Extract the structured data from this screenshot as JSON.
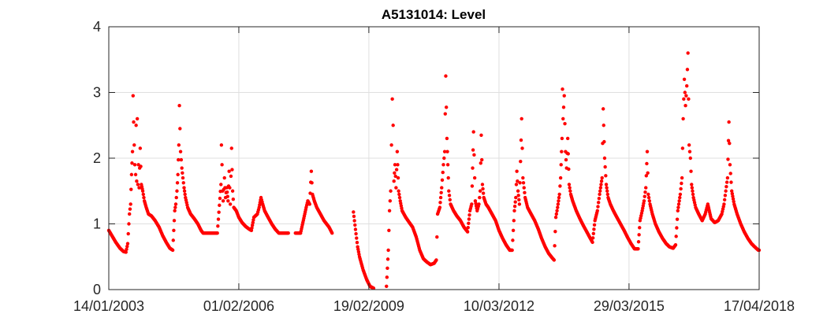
{
  "chart_data": {
    "type": "scatter",
    "title": "A5131014: Level",
    "xlabel": "",
    "ylabel": "",
    "x_axis": {
      "type": "date",
      "range": [
        "2003-01-14",
        "2018-04-17"
      ],
      "tick_labels": [
        "14/01/2003",
        "01/02/2006",
        "19/02/2009",
        "10/03/2012",
        "29/03/2015",
        "17/04/2018"
      ]
    },
    "y_axis": {
      "range": [
        0,
        4
      ],
      "tick_labels": [
        "0",
        "1",
        "2",
        "3",
        "4"
      ]
    },
    "grid": true,
    "legend": "none",
    "marker_color": "#ff0000",
    "series": [
      {
        "points": [
          [
            "2003-01-14",
            0.9
          ],
          [
            "2003-02-10",
            0.82
          ],
          [
            "2003-03-15",
            0.72
          ],
          [
            "2003-04-20",
            0.63
          ],
          [
            "2003-05-20",
            0.58
          ],
          [
            "2003-06-10",
            0.57
          ],
          [
            "2003-06-25",
            0.7
          ],
          [
            "2003-07-10",
            1.15
          ],
          [
            "2003-07-20",
            1.3
          ],
          [
            "2003-07-28",
            1.75
          ],
          [
            "2003-08-05",
            2.1
          ],
          [
            "2003-08-10",
            2.95
          ],
          [
            "2003-08-15",
            2.55
          ],
          [
            "2003-08-20",
            2.2
          ],
          [
            "2003-08-25",
            1.9
          ],
          [
            "2003-09-01",
            1.75
          ],
          [
            "2003-09-05",
            2.5
          ],
          [
            "2003-09-10",
            1.65
          ],
          [
            "2003-09-15",
            2.6
          ],
          [
            "2003-09-20",
            1.6
          ],
          [
            "2003-09-25",
            1.9
          ],
          [
            "2003-10-01",
            1.55
          ],
          [
            "2003-10-10",
            2.15
          ],
          [
            "2003-10-20",
            1.6
          ],
          [
            "2003-11-01",
            1.5
          ],
          [
            "2003-11-15",
            1.35
          ],
          [
            "2003-12-01",
            1.25
          ],
          [
            "2003-12-20",
            1.15
          ],
          [
            "2004-01-15",
            1.12
          ],
          [
            "2004-02-15",
            1.05
          ],
          [
            "2004-03-20",
            0.95
          ],
          [
            "2004-04-20",
            0.82
          ],
          [
            "2004-05-20",
            0.72
          ],
          [
            "2004-06-20",
            0.63
          ],
          [
            "2004-07-15",
            0.6
          ],
          [
            "2004-08-01",
            1.2
          ],
          [
            "2004-08-10",
            1.3
          ],
          [
            "2004-08-20",
            1.5
          ],
          [
            "2004-08-28",
            1.75
          ],
          [
            "2004-09-05",
            2.2
          ],
          [
            "2004-09-10",
            2.8
          ],
          [
            "2004-09-15",
            2.45
          ],
          [
            "2004-09-20",
            2.1
          ],
          [
            "2004-10-01",
            1.85
          ],
          [
            "2004-10-10",
            1.7
          ],
          [
            "2004-10-20",
            1.55
          ],
          [
            "2004-11-01",
            1.4
          ],
          [
            "2004-11-20",
            1.25
          ],
          [
            "2004-12-15",
            1.15
          ],
          [
            "2005-01-15",
            1.08
          ],
          [
            "2005-02-15",
            1.0
          ],
          [
            "2005-03-15",
            0.9
          ],
          [
            "2005-04-01",
            0.86
          ],
          [
            "2005-05-01",
            0.86
          ],
          [
            "2005-06-01",
            0.86
          ],
          [
            "2005-07-01",
            0.86
          ],
          [
            "2005-08-01",
            0.86
          ],
          [
            "2005-09-01",
            1.6
          ],
          [
            "2005-09-05",
            2.2
          ],
          [
            "2005-09-10",
            1.9
          ],
          [
            "2005-09-15",
            1.5
          ],
          [
            "2005-09-20",
            1.35
          ],
          [
            "2005-10-01",
            1.7
          ],
          [
            "2005-10-10",
            1.4
          ],
          [
            "2005-10-20",
            1.55
          ],
          [
            "2005-11-01",
            1.35
          ],
          [
            "2005-11-10",
            1.8
          ],
          [
            "2005-11-20",
            1.3
          ],
          [
            "2005-12-01",
            2.15
          ],
          [
            "2005-12-10",
            1.5
          ],
          [
            "2005-12-20",
            1.25
          ],
          [
            "2006-01-10",
            1.2
          ],
          [
            "2006-02-01",
            1.1
          ],
          [
            "2006-03-01",
            1.02
          ],
          [
            "2006-04-01",
            0.96
          ],
          [
            "2006-05-01",
            0.92
          ],
          [
            "2006-05-20",
            0.9
          ],
          [
            "2006-06-10",
            1.1
          ],
          [
            "2006-07-10",
            1.15
          ],
          [
            "2006-07-25",
            1.25
          ],
          [
            "2006-08-10",
            1.4
          ],
          [
            "2006-08-25",
            1.3
          ],
          [
            "2006-09-10",
            1.2
          ],
          [
            "2006-10-10",
            1.1
          ],
          [
            "2006-11-10",
            1.0
          ],
          [
            "2006-12-10",
            0.92
          ],
          [
            "2007-01-10",
            0.86
          ],
          [
            "2007-02-15",
            0.86
          ],
          [
            "2007-04-01",
            0.86
          ],
          [
            "2007-06-01",
            0.86
          ],
          [
            "2007-07-15",
            0.86
          ],
          [
            "2007-08-20",
            1.15
          ],
          [
            "2007-09-01",
            1.25
          ],
          [
            "2007-09-15",
            1.35
          ],
          [
            "2007-10-01",
            1.3
          ],
          [
            "2007-10-15",
            1.8
          ],
          [
            "2007-10-25",
            1.45
          ],
          [
            "2007-11-10",
            1.35
          ],
          [
            "2007-12-01",
            1.25
          ],
          [
            "2008-01-01",
            1.15
          ],
          [
            "2008-02-01",
            1.05
          ],
          [
            "2008-03-15",
            0.95
          ],
          [
            "2008-04-10",
            0.86
          ],
          [
            "2008-10-10",
            1.18
          ],
          [
            "2008-11-01",
            0.85
          ],
          [
            "2008-11-15",
            0.65
          ],
          [
            "2008-12-01",
            0.5
          ],
          [
            "2009-01-01",
            0.3
          ],
          [
            "2009-02-01",
            0.15
          ],
          [
            "2009-03-01",
            0.05
          ],
          [
            "2009-04-01",
            0.02
          ],
          [
            "2009-07-20",
            0.05
          ],
          [
            "2009-08-05",
            0.6
          ],
          [
            "2009-08-15",
            1.2
          ],
          [
            "2009-08-25",
            1.5
          ],
          [
            "2009-09-01",
            2.2
          ],
          [
            "2009-09-08",
            2.9
          ],
          [
            "2009-09-15",
            2.5
          ],
          [
            "2009-09-22",
            1.65
          ],
          [
            "2009-10-01",
            1.9
          ],
          [
            "2009-10-10",
            1.55
          ],
          [
            "2009-10-20",
            2.1
          ],
          [
            "2009-11-01",
            1.5
          ],
          [
            "2009-11-15",
            1.35
          ],
          [
            "2009-12-01",
            1.2
          ],
          [
            "2010-01-01",
            1.1
          ],
          [
            "2010-02-01",
            1.02
          ],
          [
            "2010-03-01",
            0.95
          ],
          [
            "2010-04-01",
            0.8
          ],
          [
            "2010-05-01",
            0.6
          ],
          [
            "2010-06-01",
            0.47
          ],
          [
            "2010-07-01",
            0.42
          ],
          [
            "2010-08-01",
            0.38
          ],
          [
            "2010-09-01",
            0.4
          ],
          [
            "2010-09-20",
            0.45
          ],
          [
            "2010-10-01",
            1.15
          ],
          [
            "2010-10-20",
            1.25
          ],
          [
            "2010-11-05",
            1.55
          ],
          [
            "2010-11-20",
            1.9
          ],
          [
            "2010-12-01",
            2.1
          ],
          [
            "2010-12-10",
            3.25
          ],
          [
            "2010-12-20",
            2.3
          ],
          [
            "2011-01-05",
            1.5
          ],
          [
            "2011-01-20",
            1.3
          ],
          [
            "2011-02-15",
            1.2
          ],
          [
            "2011-03-15",
            1.12
          ],
          [
            "2011-04-15",
            1.05
          ],
          [
            "2011-05-15",
            0.95
          ],
          [
            "2011-06-15",
            0.88
          ],
          [
            "2011-07-05",
            1.2
          ],
          [
            "2011-07-20",
            1.3
          ],
          [
            "2011-08-05",
            2.4
          ],
          [
            "2011-08-20",
            1.35
          ],
          [
            "2011-09-05",
            1.2
          ],
          [
            "2011-09-20",
            1.3
          ],
          [
            "2011-10-01",
            1.5
          ],
          [
            "2011-10-10",
            2.35
          ],
          [
            "2011-10-20",
            1.6
          ],
          [
            "2011-11-01",
            1.4
          ],
          [
            "2011-11-20",
            1.3
          ],
          [
            "2011-12-10",
            1.25
          ],
          [
            "2012-01-10",
            1.15
          ],
          [
            "2012-02-10",
            1.05
          ],
          [
            "2012-03-10",
            0.9
          ],
          [
            "2012-04-10",
            0.78
          ],
          [
            "2012-05-10",
            0.68
          ],
          [
            "2012-06-10",
            0.6
          ],
          [
            "2012-07-01",
            0.6
          ],
          [
            "2012-07-20",
            1.2
          ],
          [
            "2012-08-01",
            1.4
          ],
          [
            "2012-08-10",
            1.8
          ],
          [
            "2012-08-20",
            1.5
          ],
          [
            "2012-09-01",
            1.3
          ],
          [
            "2012-09-20",
            2.6
          ],
          [
            "2012-10-01",
            1.7
          ],
          [
            "2012-10-20",
            1.4
          ],
          [
            "2012-11-10",
            1.25
          ],
          [
            "2012-12-10",
            1.15
          ],
          [
            "2013-01-10",
            1.05
          ],
          [
            "2013-02-10",
            0.92
          ],
          [
            "2013-03-10",
            0.78
          ],
          [
            "2013-04-10",
            0.65
          ],
          [
            "2013-05-10",
            0.55
          ],
          [
            "2013-06-10",
            0.48
          ],
          [
            "2013-06-25",
            0.45
          ],
          [
            "2013-07-10",
            1.1
          ],
          [
            "2013-07-25",
            1.25
          ],
          [
            "2013-08-10",
            1.45
          ],
          [
            "2013-08-20",
            1.7
          ],
          [
            "2013-09-01",
            2.3
          ],
          [
            "2013-09-05",
            3.05
          ],
          [
            "2013-09-10",
            2.6
          ],
          [
            "2013-09-20",
            2.95
          ],
          [
            "2013-10-01",
            2.1
          ],
          [
            "2013-10-10",
            1.85
          ],
          [
            "2013-10-20",
            2.3
          ],
          [
            "2013-11-01",
            1.6
          ],
          [
            "2013-11-15",
            1.45
          ],
          [
            "2013-12-01",
            1.35
          ],
          [
            "2014-01-01",
            1.2
          ],
          [
            "2014-02-01",
            1.08
          ],
          [
            "2014-03-01",
            0.98
          ],
          [
            "2014-04-01",
            0.88
          ],
          [
            "2014-05-01",
            0.78
          ],
          [
            "2014-05-20",
            0.72
          ],
          [
            "2014-06-10",
            1.05
          ],
          [
            "2014-07-01",
            1.2
          ],
          [
            "2014-07-20",
            1.45
          ],
          [
            "2014-08-10",
            1.7
          ],
          [
            "2014-08-20",
            2.75
          ],
          [
            "2014-09-01",
            2.0
          ],
          [
            "2014-09-15",
            1.6
          ],
          [
            "2014-10-01",
            1.4
          ],
          [
            "2014-10-20",
            1.3
          ],
          [
            "2014-11-15",
            1.2
          ],
          [
            "2014-12-15",
            1.1
          ],
          [
            "2015-01-15",
            1.0
          ],
          [
            "2015-02-15",
            0.9
          ],
          [
            "2015-03-15",
            0.8
          ],
          [
            "2015-04-15",
            0.7
          ],
          [
            "2015-05-15",
            0.62
          ],
          [
            "2015-06-15",
            0.62
          ],
          [
            "2015-07-01",
            1.05
          ],
          [
            "2015-07-20",
            1.2
          ],
          [
            "2015-08-05",
            1.35
          ],
          [
            "2015-08-20",
            1.55
          ],
          [
            "2015-09-01",
            2.1
          ],
          [
            "2015-09-10",
            1.45
          ],
          [
            "2015-09-25",
            1.3
          ],
          [
            "2015-10-15",
            1.15
          ],
          [
            "2015-11-10",
            1.0
          ],
          [
            "2015-12-10",
            0.88
          ],
          [
            "2016-01-10",
            0.78
          ],
          [
            "2016-02-10",
            0.7
          ],
          [
            "2016-03-10",
            0.65
          ],
          [
            "2016-04-10",
            0.63
          ],
          [
            "2016-05-01",
            0.68
          ],
          [
            "2016-05-20",
            1.2
          ],
          [
            "2016-06-10",
            1.45
          ],
          [
            "2016-06-25",
            1.7
          ],
          [
            "2016-07-05",
            2.6
          ],
          [
            "2016-07-15",
            3.2
          ],
          [
            "2016-07-25",
            2.8
          ],
          [
            "2016-08-05",
            3.1
          ],
          [
            "2016-08-15",
            3.6
          ],
          [
            "2016-08-25",
            2.2
          ],
          [
            "2016-09-05",
            2.0
          ],
          [
            "2016-09-15",
            1.6
          ],
          [
            "2016-10-01",
            1.4
          ],
          [
            "2016-10-20",
            1.25
          ],
          [
            "2016-11-15",
            1.15
          ],
          [
            "2016-12-15",
            1.05
          ],
          [
            "2017-01-10",
            1.15
          ],
          [
            "2017-02-01",
            1.3
          ],
          [
            "2017-03-01",
            1.08
          ],
          [
            "2017-04-01",
            1.02
          ],
          [
            "2017-05-01",
            1.05
          ],
          [
            "2017-06-01",
            1.15
          ],
          [
            "2017-06-20",
            1.3
          ],
          [
            "2017-07-05",
            1.5
          ],
          [
            "2017-07-20",
            1.7
          ],
          [
            "2017-08-01",
            2.55
          ],
          [
            "2017-08-10",
            1.9
          ],
          [
            "2017-08-25",
            1.5
          ],
          [
            "2017-09-15",
            1.3
          ],
          [
            "2017-10-10",
            1.15
          ],
          [
            "2017-11-10",
            1.0
          ],
          [
            "2017-12-10",
            0.88
          ],
          [
            "2018-01-10",
            0.78
          ],
          [
            "2018-02-10",
            0.7
          ],
          [
            "2018-03-10",
            0.65
          ],
          [
            "2018-04-10",
            0.6
          ],
          [
            "2018-04-17",
            0.6
          ]
        ]
      }
    ]
  }
}
